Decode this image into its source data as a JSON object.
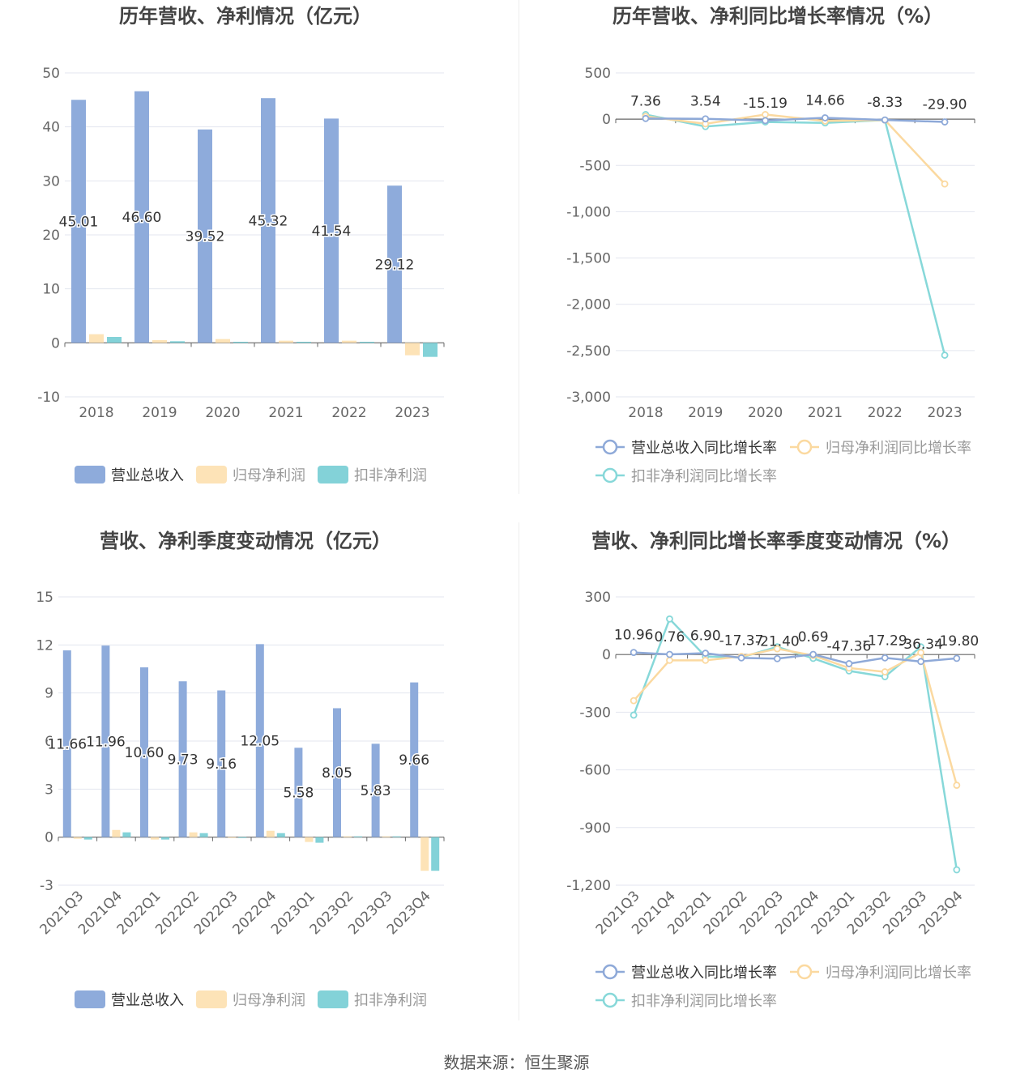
{
  "colors": {
    "revenue": "#8eabdb",
    "parent_profit": "#fde3b7",
    "deducted_profit": "#83d2d8",
    "rev_line": "#8ea9d8",
    "parent_line": "#fbd9a0",
    "deducted_line": "#87d8d9",
    "grid": "#e3e6ef",
    "axis": "#666666",
    "title": "#444444"
  },
  "footer": "数据来源：恒生聚源",
  "chart_data": [
    {
      "id": "annual-bar",
      "type": "bar",
      "title": "历年营收、净利情况（亿元）",
      "categories": [
        "2018",
        "2019",
        "2020",
        "2021",
        "2022",
        "2023"
      ],
      "ylim": [
        -10,
        50
      ],
      "yticks": [
        50,
        40,
        30,
        20,
        10,
        0,
        -10
      ],
      "ytick_labels": [
        "50",
        "40",
        "30",
        "20",
        "10",
        "0",
        "-10"
      ],
      "series": [
        {
          "name": "营业总收入",
          "values": [
            45.01,
            46.6,
            39.52,
            45.32,
            41.54,
            29.12
          ],
          "labels": [
            "45.01",
            "46.60",
            "39.52",
            "45.32",
            "41.54",
            "29.12"
          ]
        },
        {
          "name": "归母净利润",
          "values": [
            1.6,
            0.5,
            0.7,
            0.4,
            0.4,
            -2.3
          ]
        },
        {
          "name": "扣非净利润",
          "values": [
            1.1,
            0.3,
            0.2,
            0.2,
            0.2,
            -2.6
          ]
        }
      ],
      "legend_position": "bottom",
      "grid": true
    },
    {
      "id": "annual-line",
      "type": "line",
      "title": "历年营收、净利同比增长率情况（%）",
      "categories": [
        "2018",
        "2019",
        "2020",
        "2021",
        "2022",
        "2023"
      ],
      "ylim": [
        -3000,
        500
      ],
      "yticks": [
        500,
        0,
        -500,
        -1000,
        -1500,
        -2000,
        -2500,
        -3000
      ],
      "ytick_labels": [
        "500",
        "0",
        "-500",
        "-1,000",
        "-1,500",
        "-2,000",
        "-2,500",
        "-3,000"
      ],
      "series": [
        {
          "name": "营业总收入同比增长率",
          "values": [
            7.36,
            3.54,
            -15.19,
            14.66,
            -8.33,
            -29.9
          ],
          "labels": [
            "7.36",
            "3.54",
            "-15.19",
            "14.66",
            "-8.33",
            "-29.90"
          ]
        },
        {
          "name": "归母净利润同比增长率",
          "values": [
            30,
            -50,
            50,
            -20,
            -10,
            -700
          ]
        },
        {
          "name": "扣非净利润同比增长率",
          "values": [
            50,
            -80,
            -30,
            -40,
            -10,
            -2550
          ]
        }
      ],
      "legend_position": "bottom",
      "grid": true
    },
    {
      "id": "quarter-bar",
      "type": "bar",
      "title": "营收、净利季度变动情况（亿元）",
      "categories": [
        "2021Q3",
        "2021Q4",
        "2022Q1",
        "2022Q2",
        "2022Q3",
        "2022Q4",
        "2023Q1",
        "2023Q2",
        "2023Q3",
        "2023Q4"
      ],
      "ylim": [
        -3,
        15
      ],
      "yticks": [
        15,
        12,
        9,
        6,
        3,
        0,
        -3
      ],
      "ytick_labels": [
        "15",
        "12",
        "9",
        "6",
        "3",
        "0",
        "-3"
      ],
      "series": [
        {
          "name": "营业总收入",
          "values": [
            11.66,
            11.96,
            10.6,
            9.73,
            9.16,
            12.05,
            5.58,
            8.05,
            5.83,
            9.66
          ],
          "labels": [
            "11.66",
            "11.96",
            "10.60",
            "9.73",
            "9.16",
            "12.05",
            "5.58",
            "8.05",
            "5.83",
            "9.66"
          ]
        },
        {
          "name": "归母净利润",
          "values": [
            -0.1,
            0.45,
            -0.15,
            0.3,
            -0.05,
            0.4,
            -0.3,
            0.05,
            0.05,
            -2.1
          ]
        },
        {
          "name": "扣非净利润",
          "values": [
            -0.15,
            0.3,
            -0.15,
            0.25,
            -0.05,
            0.25,
            -0.35,
            0.05,
            0.05,
            -2.1
          ]
        }
      ],
      "legend_position": "bottom",
      "grid": true
    },
    {
      "id": "quarter-line",
      "type": "line",
      "title": "营收、净利同比增长率季度变动情况（%）",
      "categories": [
        "2021Q3",
        "2021Q4",
        "2022Q1",
        "2022Q2",
        "2022Q3",
        "2022Q4",
        "2023Q1",
        "2023Q2",
        "2023Q3",
        "2023Q4"
      ],
      "ylim": [
        -1200,
        300
      ],
      "yticks": [
        300,
        0,
        -300,
        -600,
        -900,
        -1200
      ],
      "ytick_labels": [
        "300",
        "0",
        "-300",
        "-600",
        "-900",
        "-1,200"
      ],
      "series": [
        {
          "name": "营业总收入同比增长率",
          "values": [
            10.96,
            0.76,
            6.9,
            -17.37,
            -21.4,
            0.69,
            -47.36,
            -17.29,
            -36.34,
            -19.8
          ],
          "labels": [
            "10.96",
            "0.76",
            "6.90",
            "-17.37",
            "-21.40",
            "0.69",
            "-47.36",
            "-17.29",
            "-36.34",
            "-19.80"
          ]
        },
        {
          "name": "归母净利润同比增长率",
          "values": [
            -240,
            -30,
            -30,
            -10,
            30,
            -5,
            -70,
            -90,
            10,
            -680
          ]
        },
        {
          "name": "扣非净利润同比增长率",
          "values": [
            -315,
            185,
            -10,
            -15,
            40,
            -20,
            -85,
            -115,
            40,
            -1120
          ]
        }
      ],
      "legend_position": "bottom",
      "grid": true
    }
  ]
}
